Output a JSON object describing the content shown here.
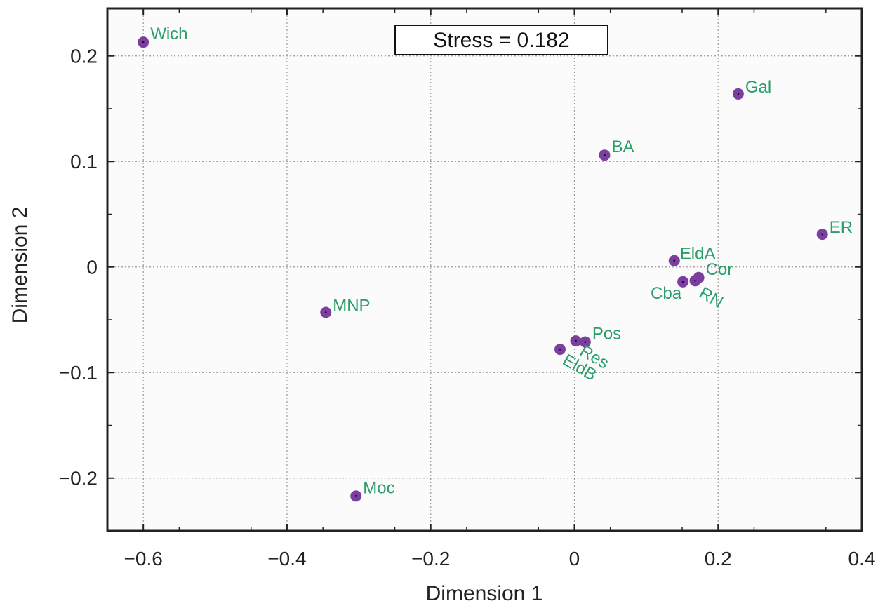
{
  "chart_data": {
    "type": "scatter",
    "xlabel": "Dimension 1",
    "ylabel": "Dimension 2",
    "xlim": [
      -0.65,
      0.4
    ],
    "ylim": [
      -0.25,
      0.245
    ],
    "x_ticks": [
      -0.6,
      -0.4,
      -0.2,
      0,
      0.2,
      0.4
    ],
    "x_tick_labels": [
      "−0.6",
      "−0.4",
      "−0.2",
      "0",
      "0.2",
      "0.4"
    ],
    "y_ticks": [
      -0.2,
      -0.1,
      0,
      0.1,
      0.2
    ],
    "y_tick_labels": [
      "−0.2",
      "−0.1",
      "0",
      "0.1",
      "0.2"
    ],
    "grid": true,
    "annotation": "Stress = 0.182",
    "colors": {
      "point": "#7b3fa0",
      "label": "#2a9d6a"
    },
    "points": [
      {
        "label": "Wich",
        "x": -0.6,
        "y": 0.213
      },
      {
        "label": "Gal",
        "x": 0.228,
        "y": 0.164
      },
      {
        "label": "BA",
        "x": 0.042,
        "y": 0.106
      },
      {
        "label": "ER",
        "x": 0.345,
        "y": 0.031
      },
      {
        "label": "EldA",
        "x": 0.139,
        "y": 0.006
      },
      {
        "label": "Cor",
        "x": 0.173,
        "y": -0.01
      },
      {
        "label": "Cba",
        "x": 0.151,
        "y": -0.014
      },
      {
        "label": "RN",
        "x": 0.168,
        "y": -0.013
      },
      {
        "label": "MNP",
        "x": -0.346,
        "y": -0.043
      },
      {
        "label": "Pos",
        "x": 0.015,
        "y": -0.071
      },
      {
        "label": "Res",
        "x": 0.002,
        "y": -0.07
      },
      {
        "label": "EldB",
        "x": -0.02,
        "y": -0.078
      },
      {
        "label": "Moc",
        "x": -0.304,
        "y": -0.217
      }
    ]
  }
}
